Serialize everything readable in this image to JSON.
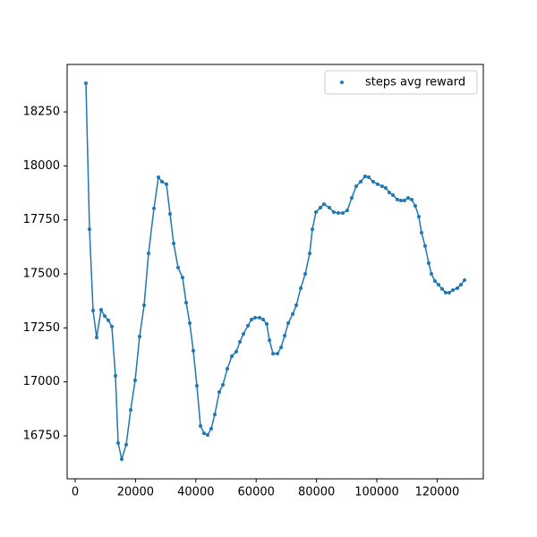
{
  "chart_data": {
    "type": "line",
    "markers": true,
    "legend": "upper right",
    "x": [
      3560,
      4750,
      5930,
      7120,
      8600,
      9790,
      10980,
      12160,
      13350,
      14240,
      15430,
      16910,
      18400,
      19880,
      21360,
      22850,
      24330,
      26110,
      27600,
      28780,
      30260,
      31450,
      32640,
      34120,
      35600,
      36790,
      37980,
      39160,
      40350,
      41540,
      42720,
      43910,
      45100,
      46290,
      47770,
      48960,
      50440,
      51930,
      53410,
      54600,
      55790,
      57270,
      58460,
      59650,
      61130,
      62320,
      63510,
      64400,
      65590,
      67070,
      68260,
      69450,
      70640,
      72120,
      73310,
      74780,
      76270,
      77750,
      78630,
      79820,
      81300,
      82480,
      84270,
      85750,
      87230,
      88710,
      90200,
      91680,
      93160,
      94650,
      96130,
      97320,
      98800,
      100280,
      101770,
      102950,
      104140,
      105330,
      106810,
      108000,
      109190,
      110370,
      111560,
      112750,
      113930,
      114820,
      116010,
      117200,
      118090,
      119270,
      120460,
      121650,
      122830,
      124020,
      125210,
      126690,
      127880,
      129070
    ],
    "series": [
      {
        "name": "steps avg reward",
        "color": "#1f77b4",
        "values": [
          18383,
          17707,
          17330,
          17206,
          17334,
          17305,
          17285,
          17256,
          17028,
          16717,
          16642,
          16709,
          16870,
          17007,
          17210,
          17355,
          17595,
          17803,
          17948,
          17927,
          17915,
          17778,
          17641,
          17529,
          17483,
          17367,
          17272,
          17144,
          16982,
          16796,
          16762,
          16754,
          16783,
          16849,
          16953,
          16986,
          17061,
          17119,
          17140,
          17185,
          17222,
          17260,
          17289,
          17297,
          17297,
          17289,
          17268,
          17193,
          17131,
          17131,
          17160,
          17214,
          17272,
          17314,
          17355,
          17434,
          17500,
          17595,
          17707,
          17786,
          17807,
          17823,
          17807,
          17786,
          17782,
          17782,
          17794,
          17852,
          17906,
          17927,
          17952,
          17948,
          17927,
          17915,
          17906,
          17898,
          17877,
          17865,
          17844,
          17840,
          17840,
          17852,
          17844,
          17815,
          17765,
          17691,
          17629,
          17550,
          17500,
          17467,
          17450,
          17430,
          17413,
          17413,
          17425,
          17434,
          17450,
          17471
        ]
      }
    ],
    "xlim": [
      -2670,
      135300
    ],
    "ylim": [
      16551,
      18470
    ],
    "xticks": [
      0,
      20000,
      40000,
      60000,
      80000,
      100000,
      120000
    ],
    "yticks": [
      16750,
      17000,
      17250,
      17500,
      17750,
      18000,
      18250
    ]
  }
}
